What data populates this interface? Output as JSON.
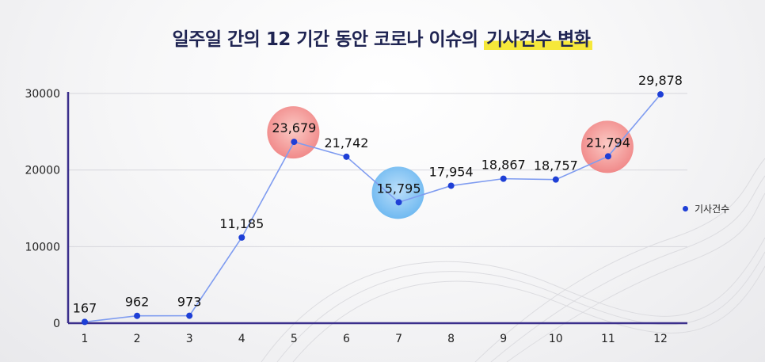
{
  "title": {
    "main": "일주일 간의 12 기간 동안 코로나 이슈의 ",
    "highlight": "기사건수 변화"
  },
  "colors": {
    "line": "#7f9cf0",
    "point": "#1e3fd6",
    "axis": "#3b2f8c",
    "bubble_red": "#f08080",
    "bubble_blue": "#64b4f0"
  },
  "chart_data": {
    "type": "line",
    "title": "일주일 간의 12 기간 동안 코로나 이슈의 기사건수 변화",
    "categories": [
      "1",
      "2",
      "3",
      "4",
      "5",
      "6",
      "7",
      "8",
      "9",
      "10",
      "11",
      "12"
    ],
    "series": [
      {
        "name": "기사건수",
        "values": [
          167,
          962,
          973,
          11185,
          23679,
          21742,
          15795,
          17954,
          18867,
          18757,
          21794,
          29878
        ],
        "labels": [
          "167",
          "962",
          "973",
          "11,185",
          "23,679",
          "21,742",
          "15,795",
          "17,954",
          "18,867",
          "18,757",
          "21,794",
          "29,878"
        ]
      }
    ],
    "yticks": [
      "0",
      "10000",
      "20000",
      "30000"
    ],
    "ylim": [
      0,
      30000
    ],
    "grid": true,
    "legend": "right",
    "highlights": [
      {
        "index": 4,
        "color": "red"
      },
      {
        "index": 6,
        "color": "blue"
      },
      {
        "index": 10,
        "color": "red"
      }
    ]
  }
}
